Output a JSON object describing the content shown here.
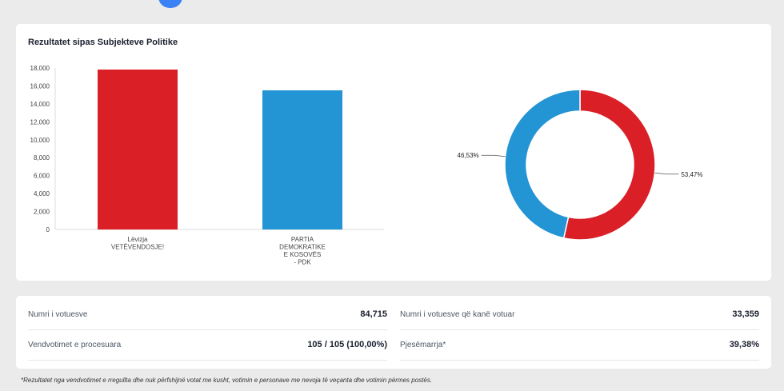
{
  "chart_data": {
    "title": "Rezultatet sipas Subjekteve Politike",
    "bar": {
      "type": "bar",
      "categories": [
        [
          "Lëvizja",
          "VETËVENDOSJE!"
        ],
        [
          "PARTIA",
          "DEMOKRATIKE",
          "E KOSOVËS",
          "- PDK"
        ]
      ],
      "values": [
        17822,
        15508
      ],
      "colors": [
        "#da1f26",
        "#2394d4"
      ],
      "ylim": [
        0,
        18000
      ],
      "yticks": [
        "0",
        "2,000",
        "4,000",
        "6,000",
        "8,000",
        "10,000",
        "12,000",
        "14,000",
        "16,000",
        "18,000"
      ]
    },
    "pie": {
      "type": "pie",
      "values": [
        53.47,
        46.53
      ],
      "labels": [
        "53,47%",
        "46,53%"
      ],
      "colors": [
        "#da1f26",
        "#2394d4"
      ]
    }
  },
  "stats": [
    {
      "label": "Numri i votuesve",
      "value": "84,715"
    },
    {
      "label": "Numri i votuesve që kanë votuar",
      "value": "33,359"
    },
    {
      "label": "Vendvotimet e procesuara",
      "value": "105 / 105 (100,00%)"
    },
    {
      "label": "Pjesëmarrja*",
      "value": "39,38%"
    }
  ],
  "footnote": "*Rezultatet nga vendvotimet e rregullta dhe nuk përfshijnë votat me kusht, votimin e personave me nevoja të veçanta dhe votimin përmes postës."
}
